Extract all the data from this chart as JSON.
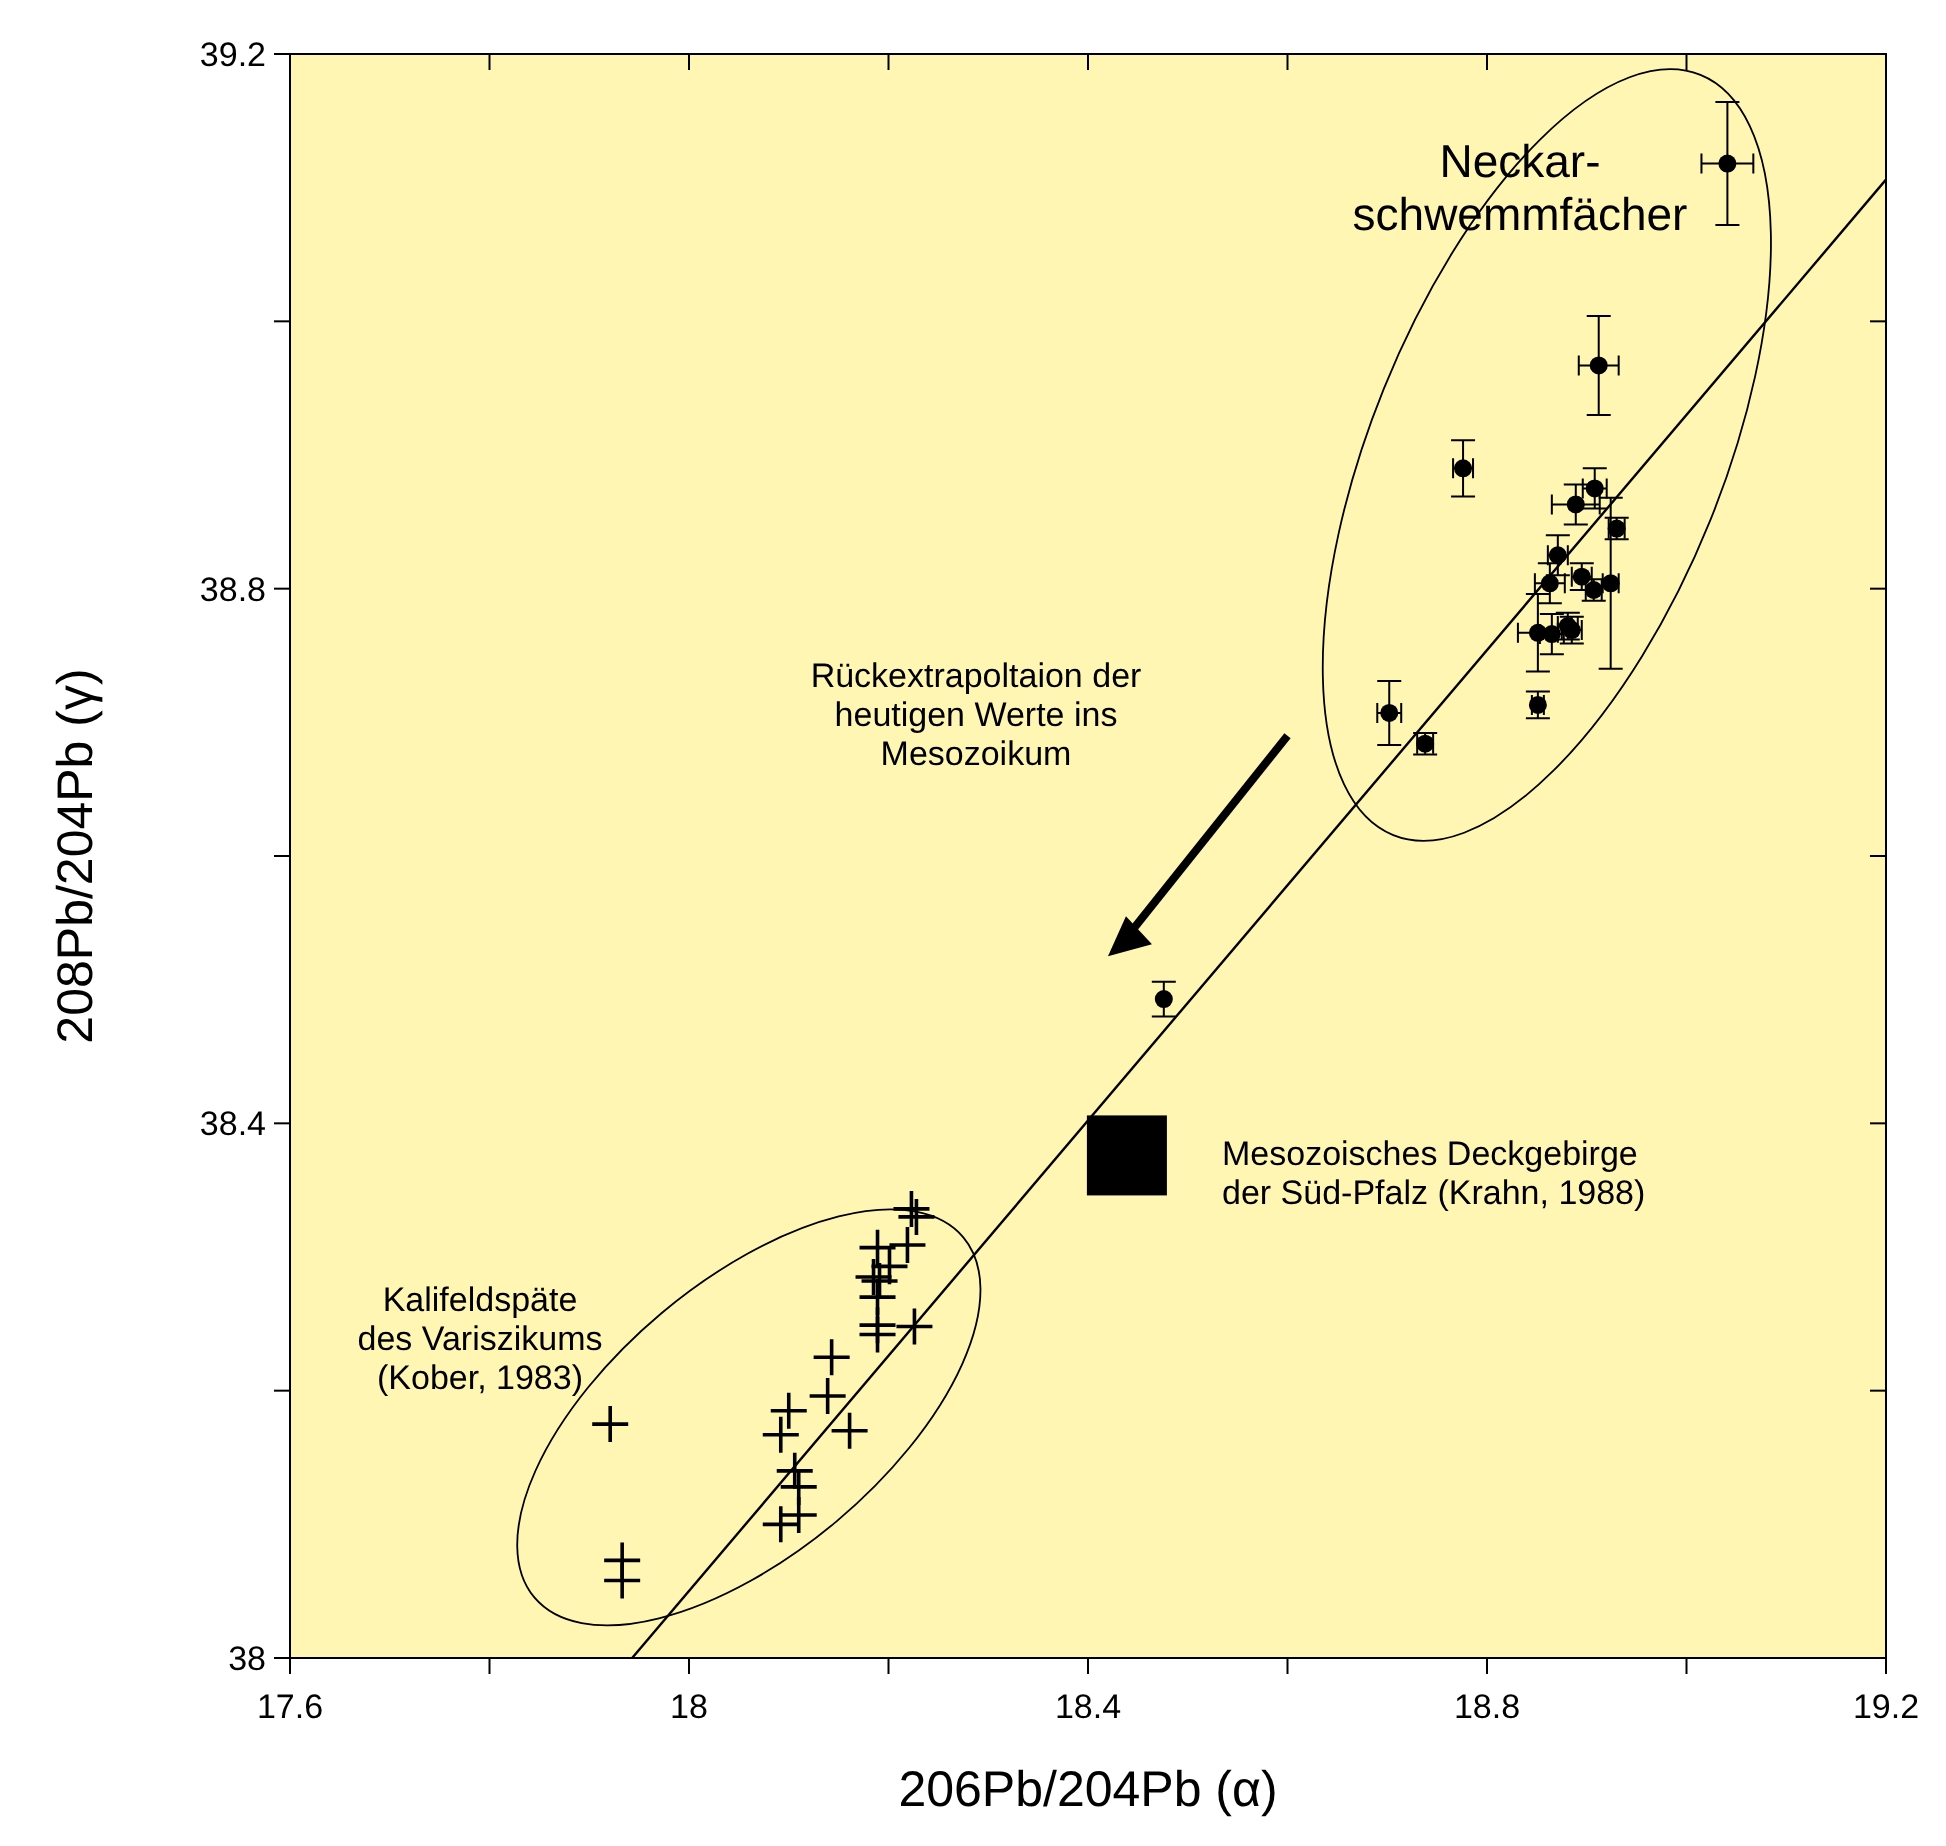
{
  "chart_data": {
    "type": "scatter",
    "xlabel": "206Pb/204Pb (α)",
    "ylabel": "208Pb/204Pb (γ)",
    "xlim": [
      17.6,
      19.2
    ],
    "ylim": [
      38,
      39.2
    ],
    "xticks": [
      17.6,
      {
        "value": 17.8,
        "label": null
      },
      18,
      {
        "value": 18.2,
        "label": null
      },
      18.4,
      {
        "value": 18.6,
        "label": null
      },
      18.8,
      {
        "value": 19,
        "label": null
      },
      19.2
    ],
    "yticks": [
      38,
      {
        "value": 38.2,
        "label": null
      },
      38.4,
      {
        "value": 38.6,
        "label": null
      },
      38.8,
      {
        "value": 39,
        "label": null
      },
      39.2
    ],
    "grid": false,
    "series": [
      {
        "marker": "circle",
        "color": "#000000",
        "x": [
          19.041,
          18.912,
          18.776,
          18.908,
          18.889,
          18.93,
          18.871,
          18.863,
          18.895,
          18.907,
          18.924,
          18.851,
          18.865,
          18.881,
          18.885,
          18.851,
          18.702,
          18.738,
          18.476
        ],
        "values": [
          39.118,
          38.967,
          38.89,
          38.875,
          38.863,
          38.845,
          38.825,
          38.804,
          38.809,
          38.799,
          38.804,
          38.767,
          38.766,
          38.772,
          38.769,
          38.713,
          38.707,
          38.684,
          38.493
        ],
        "errors": [
          0.046,
          0.037,
          0.021,
          0.015,
          0.015,
          0.008,
          0.015,
          0.015,
          0.01,
          0.008,
          0.064,
          0.029,
          0.015,
          0.01,
          0.01,
          0.01,
          0.024,
          0.008,
          0.013
        ],
        "xerrors": [
          0.026,
          0.02,
          0.01,
          0.012,
          0.024,
          0.008,
          0.01,
          0.015,
          0.01,
          0.008,
          0.008,
          0.02,
          0.012,
          0.01,
          0.01,
          0.006,
          0.012,
          0.008,
          null
        ]
      },
      {
        "marker": "cross",
        "color": "#000000",
        "x": [
          18.223,
          18.228,
          18.219,
          18.189,
          18.201,
          18.185,
          18.191,
          18.189,
          18.189,
          18.189,
          18.226,
          18.143,
          18.139,
          18.1,
          18.161,
          18.092,
          17.921,
          18.106,
          18.11,
          18.11,
          18.092,
          17.933,
          17.933
        ],
        "values": [
          38.336,
          38.33,
          38.309,
          38.307,
          38.293,
          38.285,
          38.282,
          38.27,
          38.249,
          38.242,
          38.248,
          38.225,
          38.196,
          38.185,
          38.17,
          38.167,
          38.175,
          38.14,
          38.128,
          38.107,
          38.1,
          38.073,
          38.058
        ]
      },
      {
        "marker": "square",
        "color": "#000000",
        "x": [
          18.439
        ],
        "values": [
          38.376
        ]
      },
      {
        "type": "line",
        "line_style": "solid",
        "color": "#000000",
        "x": [
          17.943,
          19.2
        ],
        "values": [
          38,
          39.106
        ]
      }
    ],
    "annotations": [
      "Neckar-\nschwemmfächer",
      "Rückextrapoltaion der\nheutigen Werte ins\nMesozoikum",
      "Mesozoisches Deckgebirge\nder Süd-Pfalz (Krahn, 1988)",
      "Kalifeldspäte\ndes Variszikums\n(Kober, 1983)"
    ]
  }
}
